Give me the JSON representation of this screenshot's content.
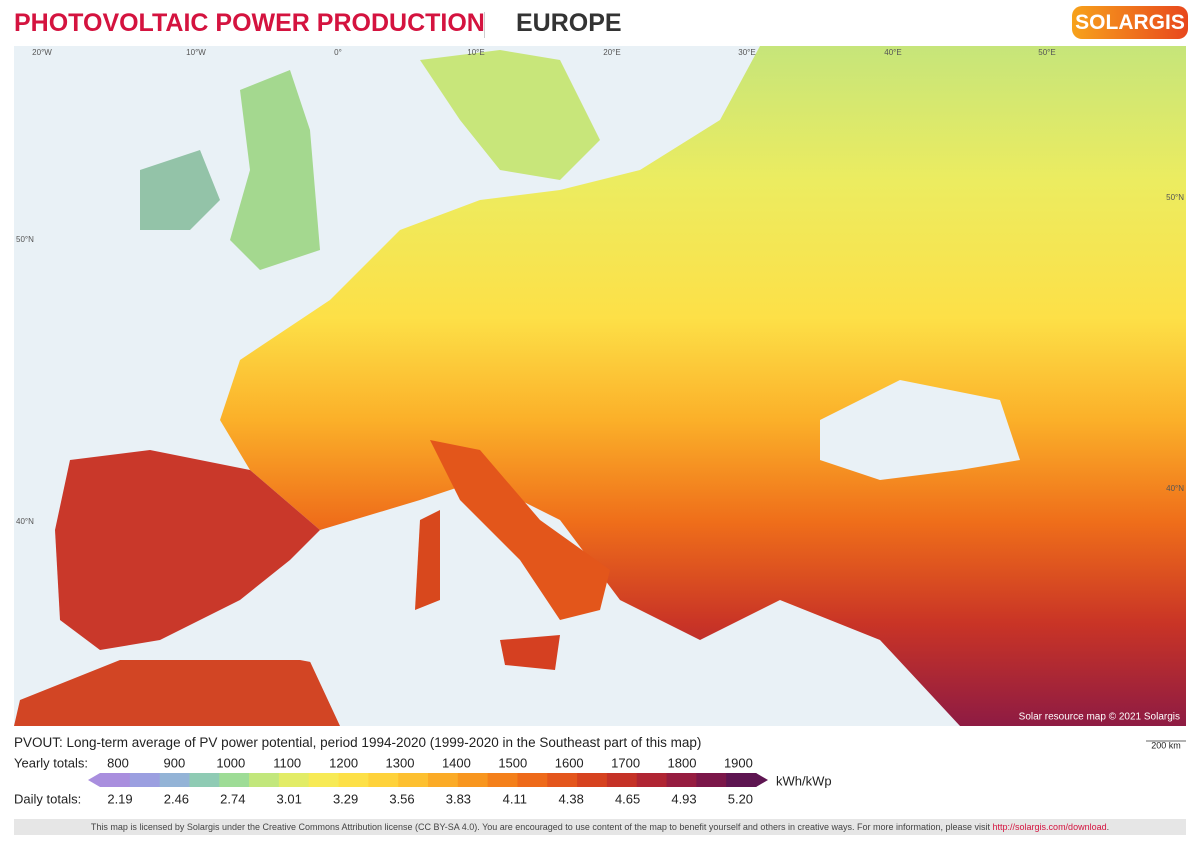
{
  "header": {
    "title": "PHOTOVOLTAIC POWER PRODUCTION",
    "region": "EUROPE",
    "logo": "SOLARGIS"
  },
  "map": {
    "lon_labels": [
      "20°W",
      "10°W",
      "0°",
      "10°E",
      "20°E",
      "30°E",
      "40°E",
      "50°E"
    ],
    "lat_labels_left": [
      "50°N",
      "40°N"
    ],
    "lat_labels_right": [
      "50°N",
      "40°N"
    ],
    "credit": "Solar resource map © 2021 Solargis",
    "scale": "200 km"
  },
  "legend": {
    "description": "PVOUT: Long-term average of PV power potential, period 1994-2020 (1999-2020 in the Southeast part of this map)",
    "yearly_label": "Yearly totals:",
    "yearly": [
      800,
      900,
      1000,
      1100,
      1200,
      1300,
      1400,
      1500,
      1600,
      1700,
      1800,
      1900
    ],
    "daily_label": "Daily totals:",
    "daily": [
      "2.19",
      "2.46",
      "2.74",
      "3.01",
      "3.29",
      "3.56",
      "3.83",
      "4.11",
      "4.38",
      "4.65",
      "4.93",
      "5.20"
    ],
    "unit": "kWh/kWp",
    "colors": [
      "#a98ede",
      "#9b9fe0",
      "#93b3d6",
      "#8fcbb4",
      "#9edc96",
      "#c2e77c",
      "#e2ec66",
      "#f7ea55",
      "#fde047",
      "#fed23b",
      "#fdc030",
      "#fbab27",
      "#f8961f",
      "#f4801b",
      "#ee6a1a",
      "#e4561c",
      "#d6421f",
      "#c53227",
      "#b02533",
      "#961d40",
      "#7b1749",
      "#5e1551"
    ]
  },
  "footer": {
    "text": "This map is licensed by Solargis under the Creative Commons Attribution license (CC BY-SA 4.0). You are encouraged to use content of the map to benefit yourself and others in creative ways. For more information, please visit ",
    "link": "http://solargis.com/download",
    "end": "."
  }
}
